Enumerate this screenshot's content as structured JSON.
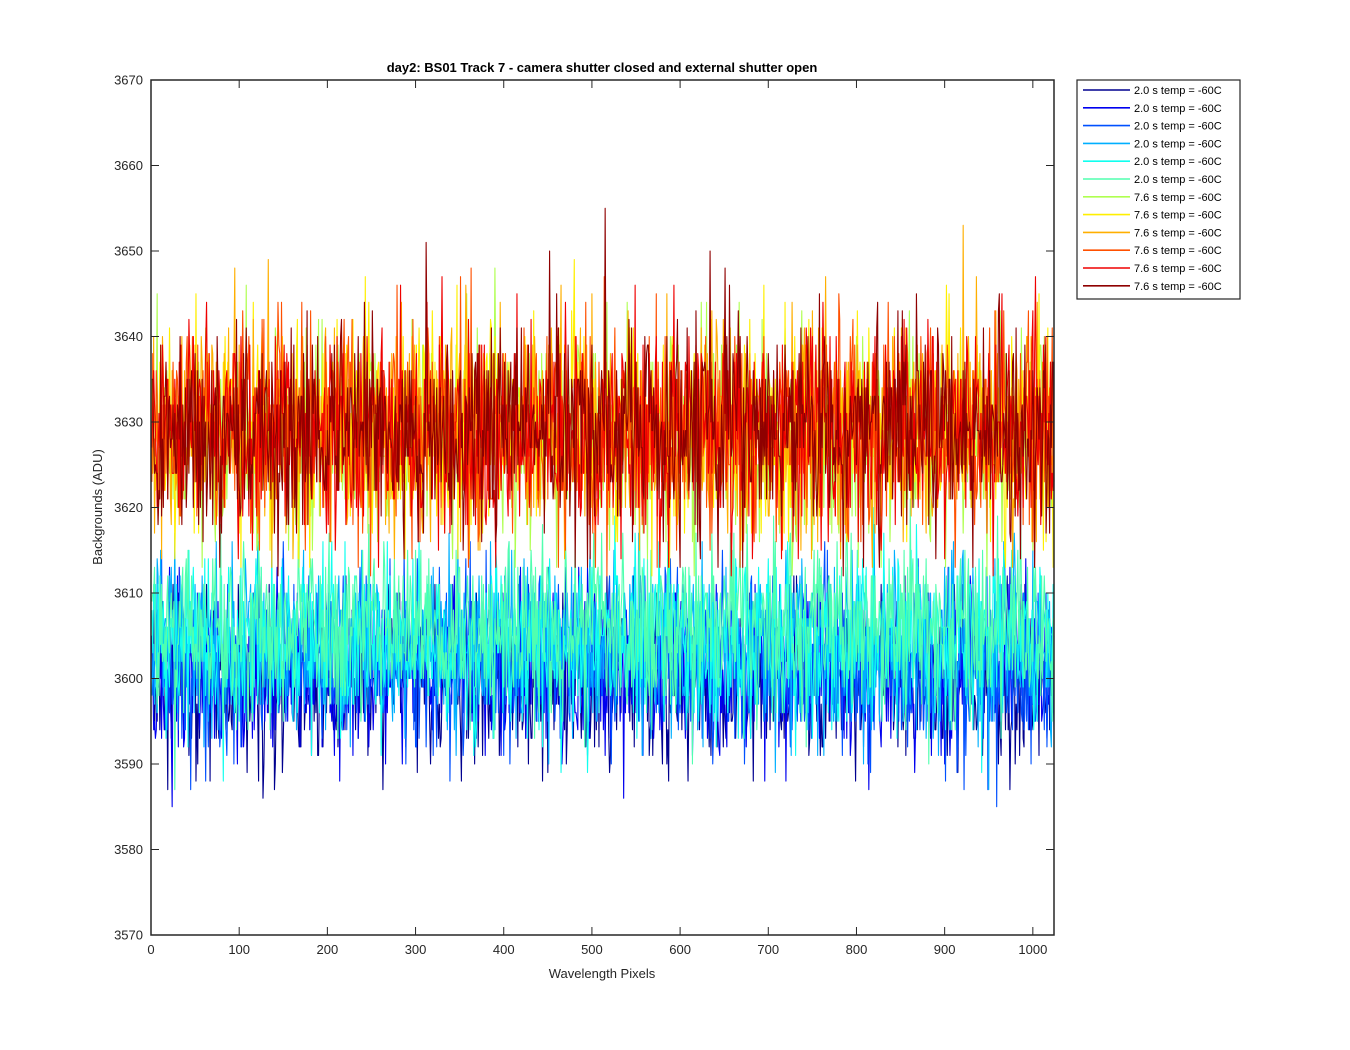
{
  "chart_data": {
    "type": "line",
    "title": "day2: BS01  Track 7 - camera shutter closed and external shutter open",
    "xlabel": "Wavelength Pixels",
    "ylabel": "Backgrounds (ADU)",
    "xlim": [
      0,
      1024
    ],
    "ylim": [
      3570,
      3670
    ],
    "xticks": [
      0,
      100,
      200,
      300,
      400,
      500,
      600,
      700,
      800,
      900,
      1000
    ],
    "yticks": [
      3570,
      3580,
      3590,
      3600,
      3610,
      3620,
      3630,
      3640,
      3650,
      3660,
      3670
    ],
    "grid": false,
    "legend_position": "outside-top-right",
    "x_range": [
      1,
      1024
    ],
    "series": [
      {
        "name": "2.0 s temp = -60C",
        "color": "#00008F",
        "mean": 3600,
        "spread": 5.2,
        "max": 3612,
        "min": 3574
      },
      {
        "name": "2.0 s temp = -60C",
        "color": "#0000EF",
        "mean": 3601,
        "spread": 5.2,
        "max": 3614,
        "min": 3577
      },
      {
        "name": "2.0 s temp = -60C",
        "color": "#0050FF",
        "mean": 3602,
        "spread": 5.2,
        "max": 3616,
        "min": 3580
      },
      {
        "name": "2.0 s temp = -60C",
        "color": "#00AFFF",
        "mean": 3604,
        "spread": 5.2,
        "max": 3620,
        "min": 3583
      },
      {
        "name": "2.0 s temp = -60C",
        "color": "#10FFEF",
        "mean": 3604,
        "spread": 5.2,
        "max": 3621,
        "min": 3584
      },
      {
        "name": "2.0 s temp = -60C",
        "color": "#50FFAF",
        "mean": 3606,
        "spread": 5.2,
        "max": 3623,
        "min": 3576
      },
      {
        "name": "7.6 s temp = -60C",
        "color": "#AFFF50",
        "mean": 3628,
        "spread": 6.3,
        "max": 3662,
        "min": 3612
      },
      {
        "name": "7.6 s temp = -60C",
        "color": "#FFEF00",
        "mean": 3629,
        "spread": 6.3,
        "max": 3666,
        "min": 3612
      },
      {
        "name": "7.6 s temp = -60C",
        "color": "#FFAF00",
        "mean": 3629,
        "spread": 6.3,
        "max": 3656,
        "min": 3612
      },
      {
        "name": "7.6 s temp = -60C",
        "color": "#FF5000",
        "mean": 3629,
        "spread": 6.3,
        "max": 3664,
        "min": 3612
      },
      {
        "name": "7.6 s temp = -60C",
        "color": "#EF0000",
        "mean": 3629,
        "spread": 6.3,
        "max": 3658,
        "min": 3612
      },
      {
        "name": "7.6 s temp = -60C",
        "color": "#8F0000",
        "mean": 3629,
        "spread": 6.3,
        "max": 3660,
        "min": 3612
      }
    ]
  }
}
